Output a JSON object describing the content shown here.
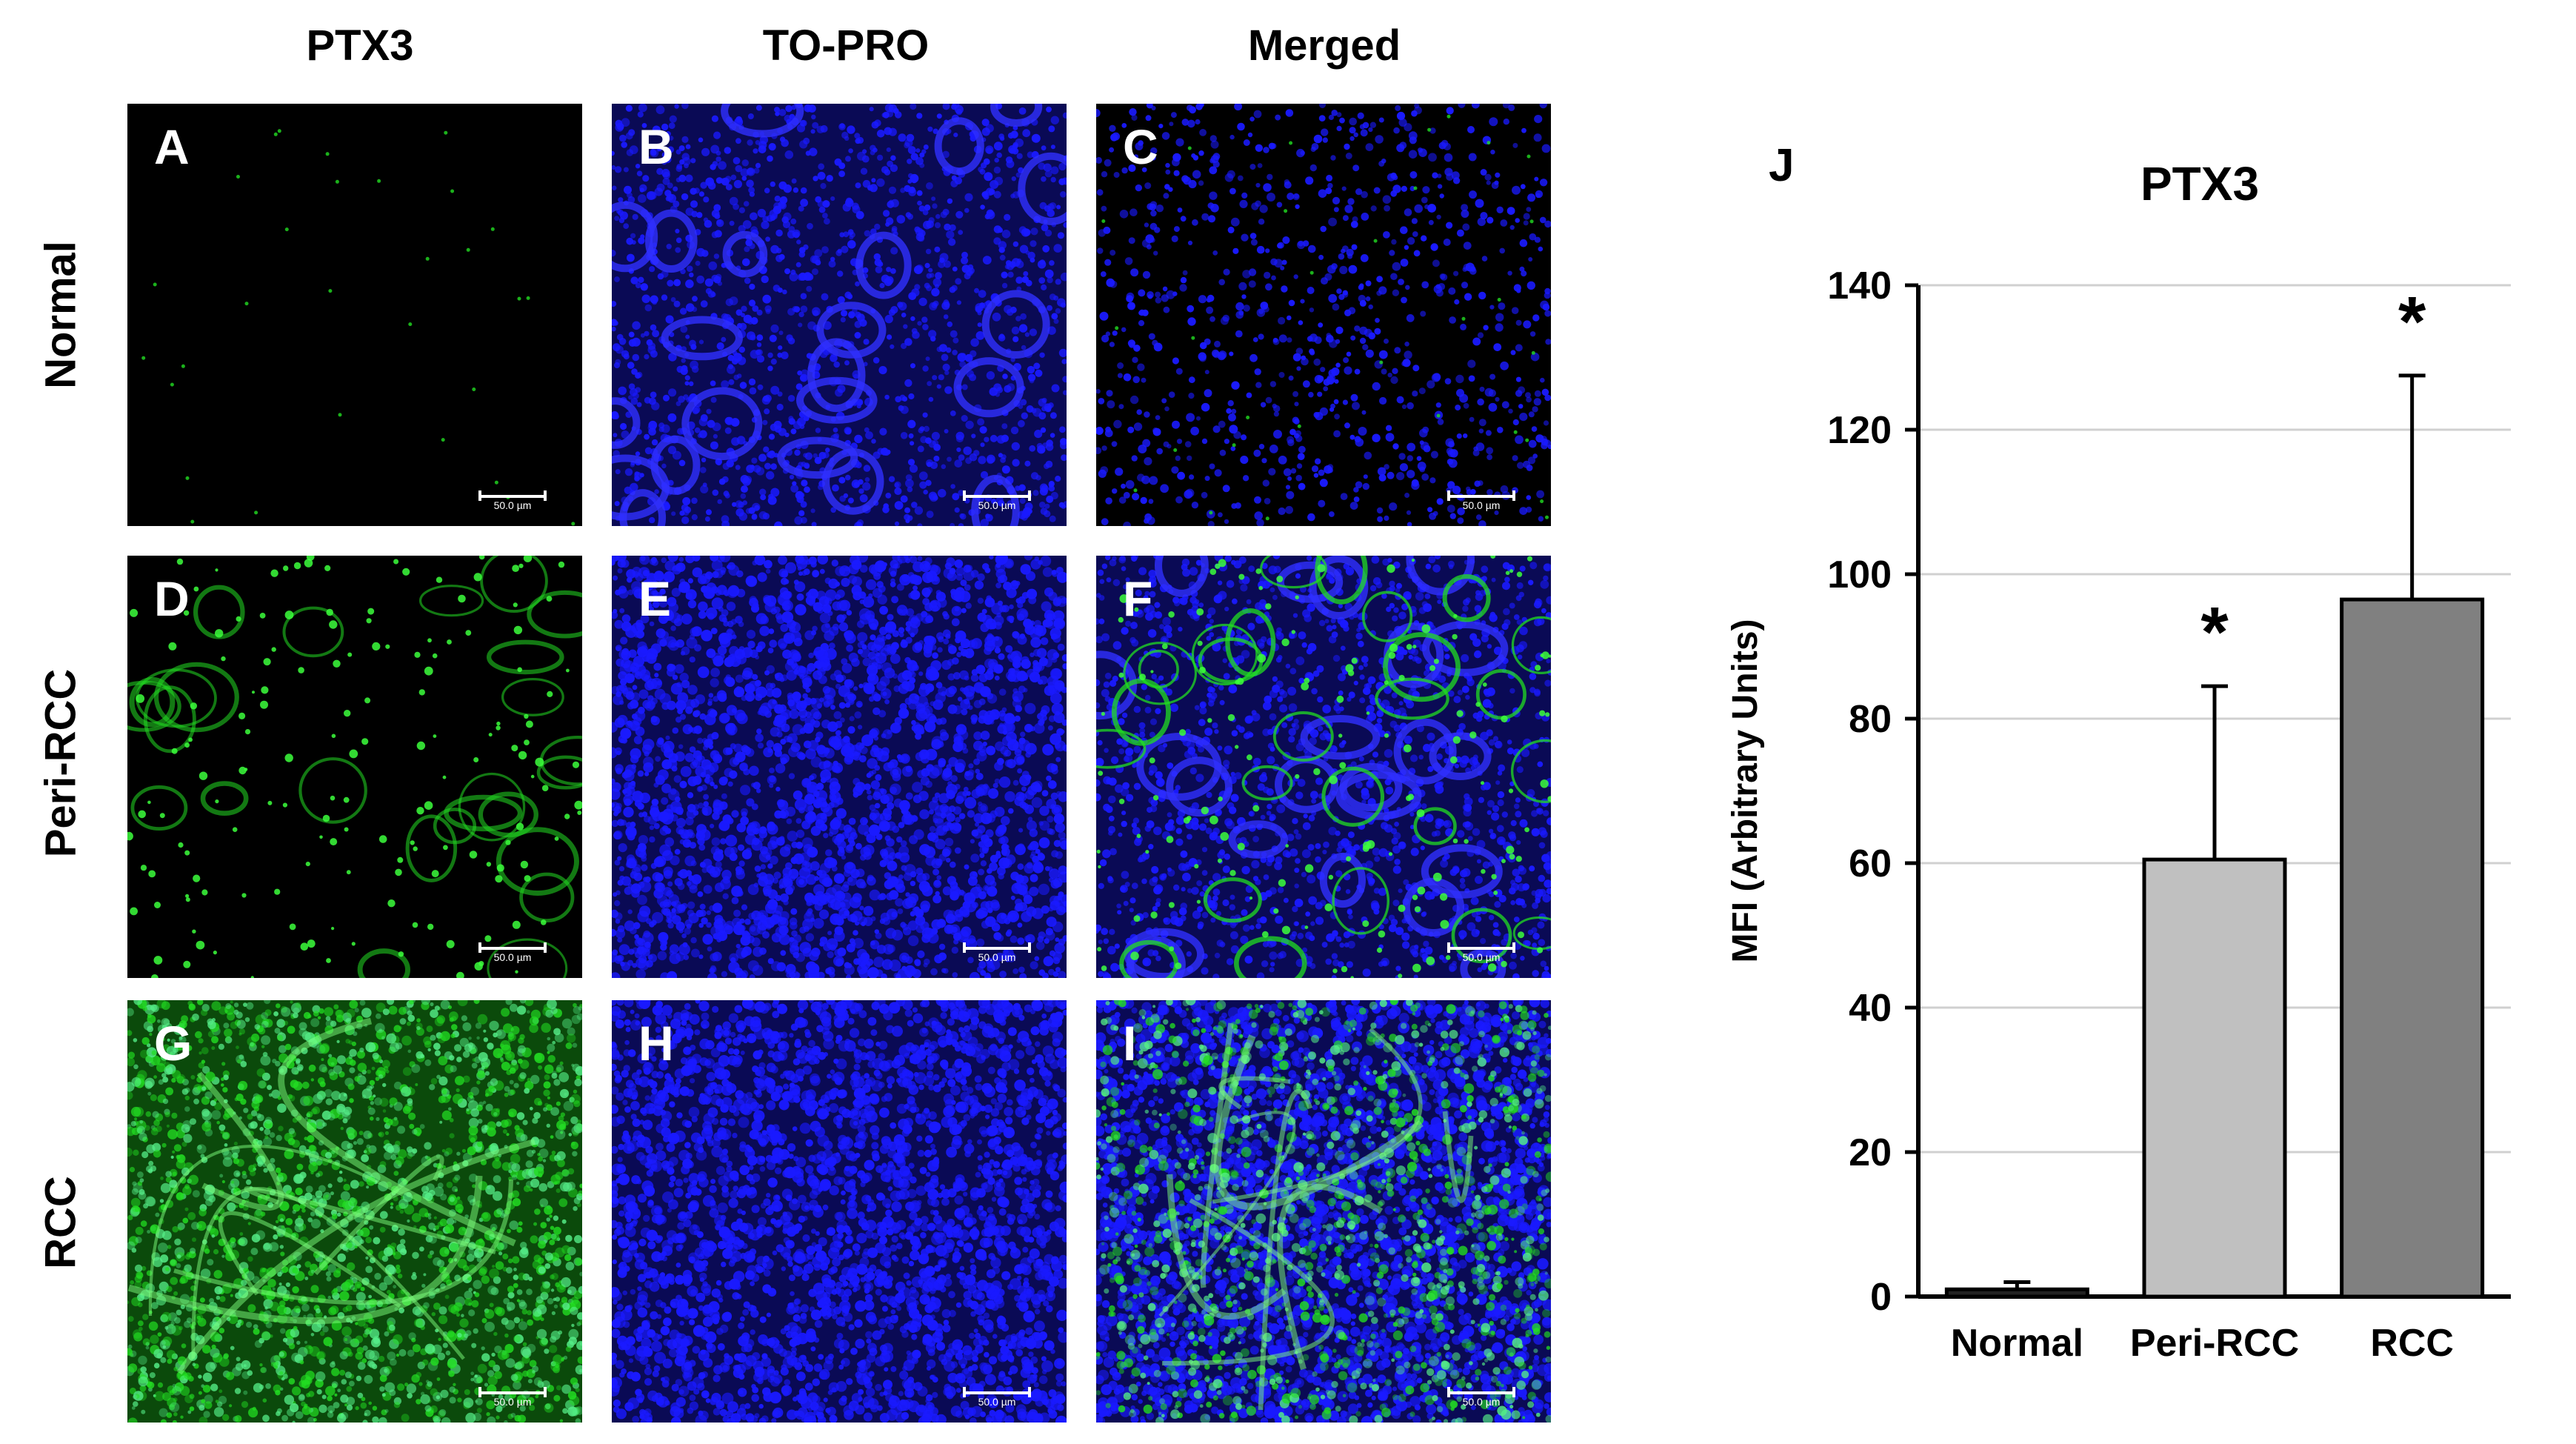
{
  "column_headers": [
    "PTX3",
    "TO-PRO",
    "Merged"
  ],
  "row_headers": [
    "Normal",
    "Peri-RCC",
    "RCC"
  ],
  "panels": [
    {
      "label": "A",
      "stain": "green",
      "density": "sparse"
    },
    {
      "label": "B",
      "stain": "blue",
      "density": "moderate"
    },
    {
      "label": "C",
      "stain": "merged",
      "density": "sparse"
    },
    {
      "label": "D",
      "stain": "green",
      "density": "moderate"
    },
    {
      "label": "E",
      "stain": "blue",
      "density": "dense"
    },
    {
      "label": "F",
      "stain": "merged",
      "density": "moderate"
    },
    {
      "label": "G",
      "stain": "green",
      "density": "dense"
    },
    {
      "label": "H",
      "stain": "blue",
      "density": "dense"
    },
    {
      "label": "I",
      "stain": "merged",
      "density": "dense"
    }
  ],
  "scale_bar_text": "50.0 µm",
  "panel_j_label": "J",
  "colors": {
    "green": "#22dd22",
    "blue": "#1a1aff",
    "background": "#000000"
  },
  "chart_data": {
    "type": "bar",
    "title": "PTX3",
    "ylabel": "MFI (Arbitrary Units)",
    "xlabel": "",
    "categories": [
      "Normal",
      "Peri-RCC",
      "RCC"
    ],
    "values": [
      1,
      60.5,
      96.5
    ],
    "errors": [
      1,
      24,
      31
    ],
    "significance": [
      "",
      "*",
      "*"
    ],
    "bar_colors": [
      "#222222",
      "#c0c0c0",
      "#808080"
    ],
    "ylim": [
      0,
      140
    ],
    "yticks": [
      0,
      20,
      40,
      60,
      80,
      100,
      120,
      140
    ],
    "grid": true
  }
}
